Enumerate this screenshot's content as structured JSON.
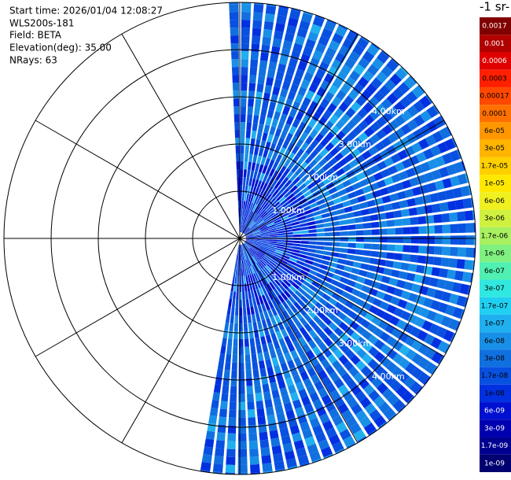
{
  "info": {
    "start_time": "Start time: 2026/01/04 12:08:27",
    "instrument": "WLS200s-181",
    "field": "Field: BETA",
    "elevation": "Elevation(deg): 35.00",
    "nrays": "NRays: 63"
  },
  "range_labels_upper": [
    "1.00km",
    "2.00km",
    "3.00km",
    "4.00km"
  ],
  "range_labels_lower": [
    "1.00km",
    "2.00km",
    "3.00km",
    "4.00km"
  ],
  "colorbar": {
    "unit": "-1 sr-",
    "labels": [
      "0.0017",
      "0.001",
      "0.0006",
      "0.0003",
      "0.00017",
      "0.0001",
      "6e-05",
      "3e-05",
      "1.7e-05",
      "1e-05",
      "6e-06",
      "3e-06",
      "1.7e-06",
      "1e-06",
      "6e-07",
      "3e-07",
      "1.7e-07",
      "1e-07",
      "6e-08",
      "3e-08",
      "1.7e-08",
      "1e-08",
      "6e-09",
      "3e-09",
      "1.7e-09",
      "1e-09"
    ],
    "colors": [
      "#800000",
      "#b00000",
      "#e00000",
      "#ff2000",
      "#ff4800",
      "#ff7000",
      "#ff9800",
      "#ffb400",
      "#ffd000",
      "#ffe800",
      "#f0f020",
      "#d0f040",
      "#a8f060",
      "#80f080",
      "#50f0b0",
      "#30e8e0",
      "#20d0f0",
      "#20b0f0",
      "#1890e8",
      "#1070e0",
      "#0850e0",
      "#0030e0",
      "#0010d0",
      "#0000b0",
      "#000090",
      "#000070"
    ]
  }
}
